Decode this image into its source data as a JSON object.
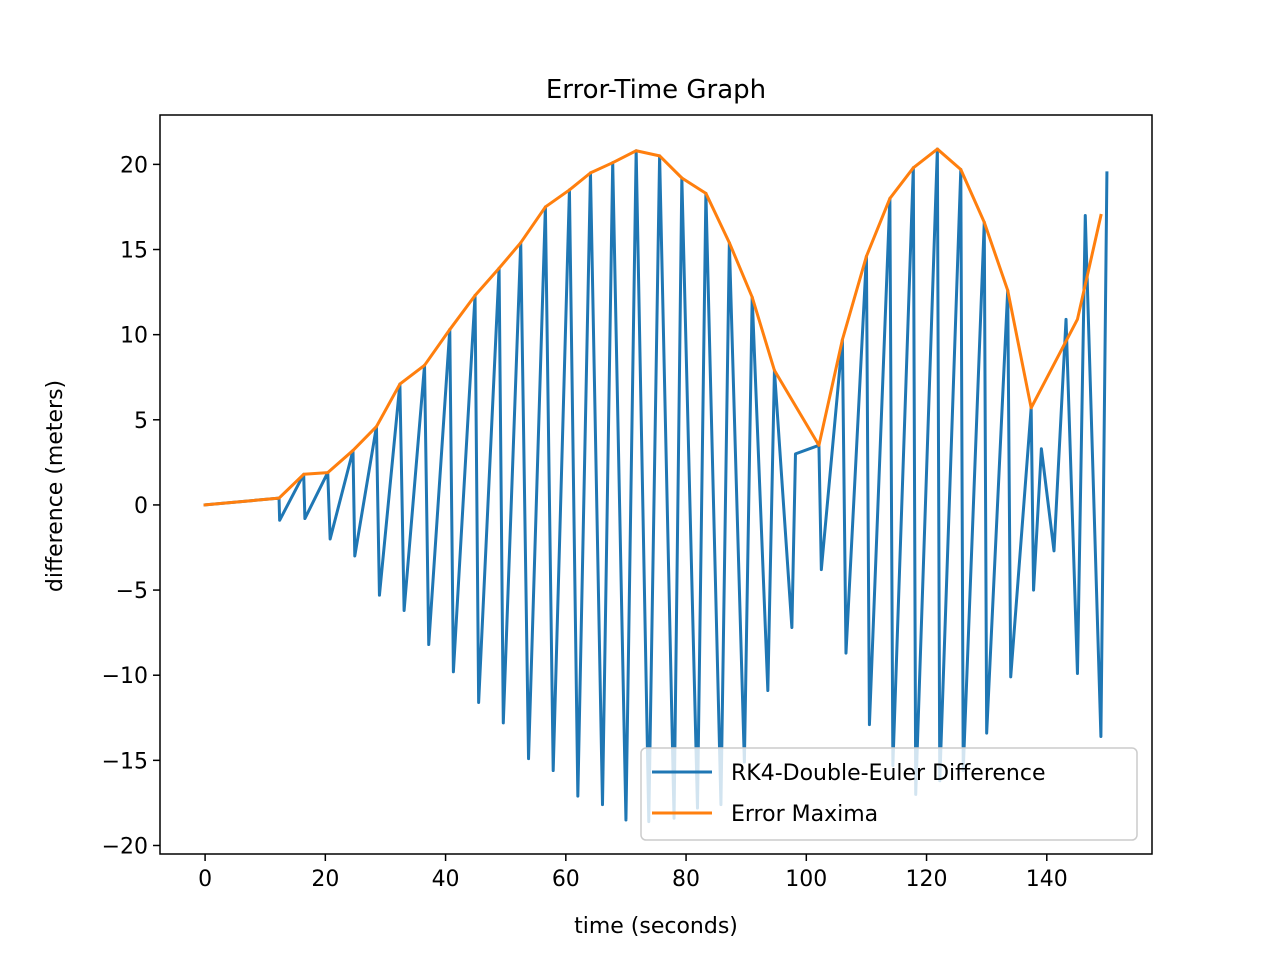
{
  "chart_data": {
    "type": "line",
    "title": "Error-Time Graph",
    "xlabel": "time (seconds)",
    "ylabel": "difference (meters)",
    "xlim": [
      -7.5,
      157.5
    ],
    "ylim": [
      -20.5,
      22.9
    ],
    "xticks": [
      0,
      20,
      40,
      60,
      80,
      100,
      120,
      140
    ],
    "yticks": [
      -20,
      -15,
      -10,
      -5,
      0,
      5,
      10,
      15,
      20
    ],
    "ytick_labels": [
      "−20",
      "−15",
      "−10",
      "−5",
      "0",
      "5",
      "10",
      "15",
      "20"
    ],
    "grid": false,
    "legend_position": "lower right",
    "series": [
      {
        "name": "RK4-Double-Euler Difference",
        "color": "#1f77b4",
        "x": [
          0,
          12.3,
          12.4,
          16.4,
          16.6,
          20.4,
          20.8,
          24.6,
          24.9,
          28.5,
          29.0,
          32.4,
          33.1,
          36.5,
          37.2,
          40.7,
          41.3,
          44.9,
          45.5,
          48.9,
          49.6,
          52.5,
          53.8,
          56.6,
          57.9,
          60.6,
          62.0,
          64.1,
          66.1,
          67.8,
          70.0,
          71.7,
          73.8,
          75.6,
          78.0,
          79.3,
          81.9,
          83.3,
          85.8,
          87.2,
          89.7,
          91.0,
          93.6,
          94.7,
          97.6,
          98.2,
          102.1,
          102.5,
          106.0,
          106.6,
          110.0,
          110.5,
          113.9,
          114.4,
          117.8,
          118.2,
          121.8,
          122.2,
          125.7,
          126.1,
          129.6,
          130.0,
          133.5,
          134.0,
          137.4,
          137.8,
          139.1,
          141.2,
          143.2,
          145.1,
          146.4,
          149.0,
          150.0
        ],
        "y": [
          0,
          0.4,
          -0.9,
          1.8,
          -0.8,
          1.9,
          -2.0,
          3.2,
          -3.0,
          4.6,
          -5.3,
          7.1,
          -6.2,
          8.2,
          -8.2,
          10.3,
          -9.8,
          12.3,
          -11.6,
          13.9,
          -12.8,
          15.4,
          -14.9,
          17.5,
          -15.6,
          18.5,
          -17.1,
          19.5,
          -17.6,
          20.1,
          -18.5,
          20.8,
          -18.6,
          20.5,
          -18.4,
          19.2,
          -17.8,
          18.3,
          -17.6,
          15.4,
          -15.1,
          12.2,
          -10.9,
          7.9,
          -7.2,
          3.0,
          3.5,
          -3.8,
          9.7,
          -8.7,
          14.6,
          -12.9,
          18.0,
          -15.3,
          19.8,
          -17.0,
          20.9,
          -16.2,
          19.7,
          -15.6,
          16.6,
          -13.4,
          12.6,
          -10.1,
          5.7,
          -5.0,
          3.3,
          -2.7,
          10.9,
          -9.9,
          17.0,
          -13.6,
          19.5
        ]
      },
      {
        "name": "Error Maxima",
        "color": "#ff7f0e",
        "x": [
          0,
          12.3,
          16.4,
          20.4,
          24.6,
          28.5,
          32.4,
          36.5,
          40.7,
          44.9,
          48.9,
          52.5,
          56.6,
          60.6,
          64.1,
          67.8,
          71.7,
          75.6,
          79.3,
          83.3,
          87.2,
          91.0,
          94.7,
          102.1,
          106.0,
          110.0,
          113.9,
          117.8,
          121.8,
          125.7,
          129.6,
          133.5,
          137.4,
          145.1,
          149.0
        ],
        "y": [
          0,
          0.4,
          1.8,
          1.9,
          3.2,
          4.6,
          7.1,
          8.2,
          10.3,
          12.3,
          13.9,
          15.4,
          17.5,
          18.5,
          19.5,
          20.1,
          20.8,
          20.5,
          19.2,
          18.3,
          15.4,
          12.2,
          7.9,
          3.5,
          9.7,
          14.6,
          18.0,
          19.8,
          20.9,
          19.7,
          16.6,
          12.6,
          5.7,
          10.9,
          17.0
        ]
      }
    ]
  }
}
